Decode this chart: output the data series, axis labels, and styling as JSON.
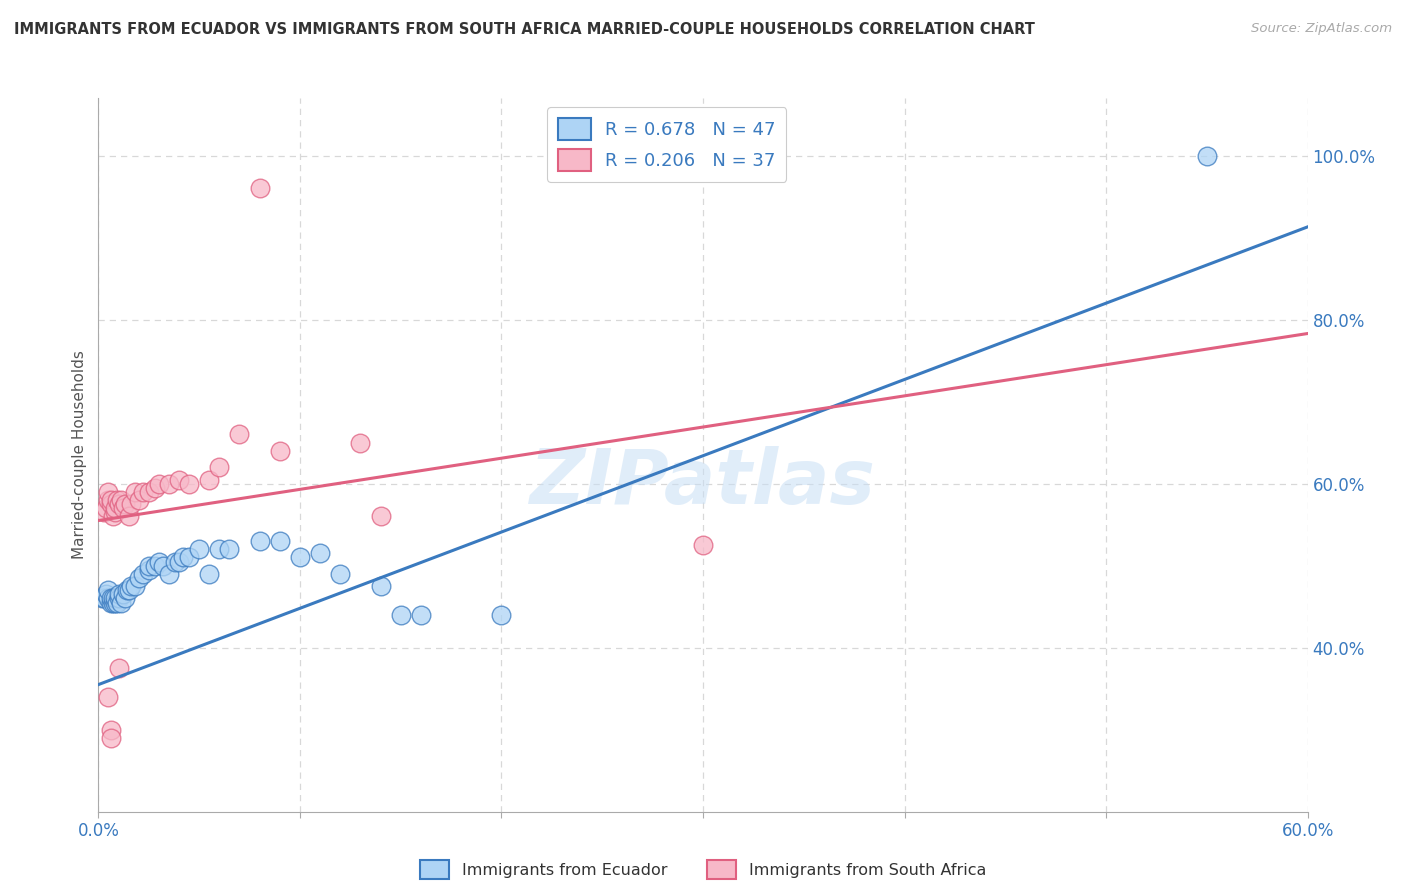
{
  "title": "IMMIGRANTS FROM ECUADOR VS IMMIGRANTS FROM SOUTH AFRICA MARRIED-COUPLE HOUSEHOLDS CORRELATION CHART",
  "source": "Source: ZipAtlas.com",
  "xlabel_bottom": [
    "Immigrants from Ecuador",
    "Immigrants from South Africa"
  ],
  "ylabel": "Married-couple Households",
  "xlim": [
    0.0,
    0.6
  ],
  "ylim": [
    0.2,
    1.07
  ],
  "xticks": [
    0.0,
    0.1,
    0.2,
    0.3,
    0.4,
    0.5,
    0.6
  ],
  "xticklabels": [
    "0.0%",
    "",
    "",
    "",
    "",
    "",
    "60.0%"
  ],
  "ytick_right": [
    0.4,
    0.6,
    0.8,
    1.0
  ],
  "ytick_right_labels": [
    "40.0%",
    "60.0%",
    "80.0%",
    "100.0%"
  ],
  "ecuador_R": 0.678,
  "ecuador_N": 47,
  "sa_R": 0.206,
  "sa_N": 37,
  "ecuador_color": "#aed4f5",
  "sa_color": "#f7b8c8",
  "ecuador_line_color": "#3a7abf",
  "sa_line_color": "#e06080",
  "ecuador_intercept": 0.355,
  "ecuador_slope": 0.93,
  "sa_intercept": 0.555,
  "sa_slope": 0.38,
  "ecuador_points": [
    [
      0.002,
      0.46
    ],
    [
      0.003,
      0.46
    ],
    [
      0.004,
      0.465
    ],
    [
      0.005,
      0.46
    ],
    [
      0.005,
      0.47
    ],
    [
      0.006,
      0.455
    ],
    [
      0.006,
      0.46
    ],
    [
      0.007,
      0.455
    ],
    [
      0.007,
      0.46
    ],
    [
      0.008,
      0.455
    ],
    [
      0.008,
      0.46
    ],
    [
      0.009,
      0.455
    ],
    [
      0.01,
      0.46
    ],
    [
      0.01,
      0.465
    ],
    [
      0.011,
      0.455
    ],
    [
      0.012,
      0.465
    ],
    [
      0.013,
      0.46
    ],
    [
      0.014,
      0.47
    ],
    [
      0.015,
      0.47
    ],
    [
      0.016,
      0.475
    ],
    [
      0.018,
      0.475
    ],
    [
      0.02,
      0.485
    ],
    [
      0.022,
      0.49
    ],
    [
      0.025,
      0.495
    ],
    [
      0.025,
      0.5
    ],
    [
      0.028,
      0.5
    ],
    [
      0.03,
      0.505
    ],
    [
      0.032,
      0.5
    ],
    [
      0.035,
      0.49
    ],
    [
      0.038,
      0.505
    ],
    [
      0.04,
      0.505
    ],
    [
      0.042,
      0.51
    ],
    [
      0.045,
      0.51
    ],
    [
      0.05,
      0.52
    ],
    [
      0.055,
      0.49
    ],
    [
      0.06,
      0.52
    ],
    [
      0.065,
      0.52
    ],
    [
      0.08,
      0.53
    ],
    [
      0.09,
      0.53
    ],
    [
      0.1,
      0.51
    ],
    [
      0.11,
      0.515
    ],
    [
      0.12,
      0.49
    ],
    [
      0.14,
      0.475
    ],
    [
      0.15,
      0.44
    ],
    [
      0.16,
      0.44
    ],
    [
      0.2,
      0.44
    ],
    [
      0.55,
      1.0
    ]
  ],
  "sa_points": [
    [
      0.003,
      0.565
    ],
    [
      0.004,
      0.57
    ],
    [
      0.005,
      0.58
    ],
    [
      0.005,
      0.59
    ],
    [
      0.006,
      0.575
    ],
    [
      0.006,
      0.58
    ],
    [
      0.007,
      0.56
    ],
    [
      0.008,
      0.565
    ],
    [
      0.008,
      0.57
    ],
    [
      0.009,
      0.58
    ],
    [
      0.01,
      0.575
    ],
    [
      0.011,
      0.58
    ],
    [
      0.012,
      0.57
    ],
    [
      0.013,
      0.575
    ],
    [
      0.015,
      0.56
    ],
    [
      0.016,
      0.575
    ],
    [
      0.018,
      0.59
    ],
    [
      0.02,
      0.58
    ],
    [
      0.022,
      0.59
    ],
    [
      0.025,
      0.59
    ],
    [
      0.028,
      0.595
    ],
    [
      0.03,
      0.6
    ],
    [
      0.035,
      0.6
    ],
    [
      0.04,
      0.605
    ],
    [
      0.045,
      0.6
    ],
    [
      0.055,
      0.605
    ],
    [
      0.06,
      0.62
    ],
    [
      0.07,
      0.66
    ],
    [
      0.08,
      0.96
    ],
    [
      0.09,
      0.64
    ],
    [
      0.13,
      0.65
    ],
    [
      0.14,
      0.56
    ],
    [
      0.005,
      0.34
    ],
    [
      0.006,
      0.3
    ],
    [
      0.006,
      0.29
    ],
    [
      0.01,
      0.375
    ],
    [
      0.3,
      0.525
    ]
  ],
  "watermark_text": "ZIPatlas",
  "background_color": "#ffffff",
  "grid_color": "#d8d8d8"
}
